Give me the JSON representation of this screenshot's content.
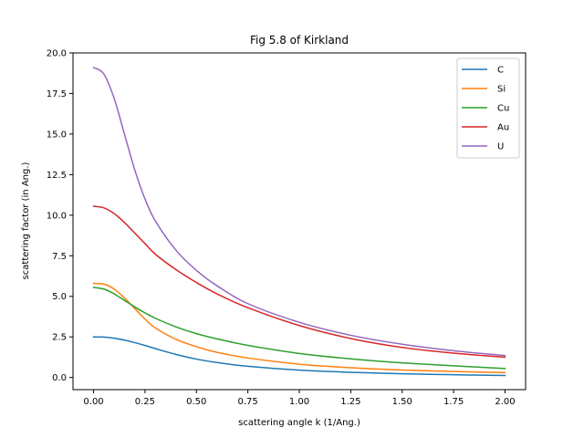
{
  "chart_data": {
    "type": "line",
    "title": "Fig 5.8 of Kirkland",
    "xlabel": "scattering angle k (1/Ang.)",
    "ylabel": "scattering factor (in Ang.)",
    "xlim": [
      -0.1,
      2.1
    ],
    "ylim": [
      -0.75,
      20.0
    ],
    "xticks": [
      "0.00",
      "0.25",
      "0.50",
      "0.75",
      "1.00",
      "1.25",
      "1.50",
      "1.75",
      "2.00"
    ],
    "yticks": [
      "0.0",
      "2.5",
      "5.0",
      "7.5",
      "10.0",
      "12.5",
      "15.0",
      "17.5",
      "20.0"
    ],
    "legend_position": "top-right",
    "grid": false,
    "x": [
      0.0,
      0.05,
      0.1,
      0.15,
      0.2,
      0.25,
      0.3,
      0.4,
      0.5,
      0.6,
      0.75,
      1.0,
      1.25,
      1.5,
      1.75,
      2.0
    ],
    "series": [
      {
        "name": "C",
        "color": "#1f77b4",
        "values": [
          2.5,
          2.49,
          2.42,
          2.3,
          2.15,
          1.97,
          1.78,
          1.42,
          1.13,
          0.92,
          0.69,
          0.45,
          0.32,
          0.23,
          0.17,
          0.12
        ]
      },
      {
        "name": "Si",
        "color": "#ff7f0e",
        "values": [
          5.8,
          5.75,
          5.45,
          4.9,
          4.25,
          3.6,
          3.05,
          2.35,
          1.9,
          1.55,
          1.2,
          0.82,
          0.6,
          0.46,
          0.37,
          0.3
        ]
      },
      {
        "name": "Cu",
        "color": "#2ca02c",
        "values": [
          5.55,
          5.45,
          5.15,
          4.75,
          4.35,
          3.98,
          3.65,
          3.12,
          2.7,
          2.38,
          1.98,
          1.48,
          1.15,
          0.9,
          0.72,
          0.55
        ]
      },
      {
        "name": "Au",
        "color": "#d62728",
        "values": [
          10.55,
          10.45,
          10.1,
          9.55,
          8.9,
          8.25,
          7.6,
          6.65,
          5.85,
          5.15,
          4.3,
          3.2,
          2.4,
          1.85,
          1.5,
          1.25
        ]
      },
      {
        "name": "U",
        "color": "#9467bd",
        "values": [
          19.1,
          18.7,
          17.2,
          15.0,
          12.8,
          11.0,
          9.65,
          7.85,
          6.6,
          5.65,
          4.55,
          3.4,
          2.6,
          2.05,
          1.65,
          1.35
        ]
      }
    ]
  }
}
